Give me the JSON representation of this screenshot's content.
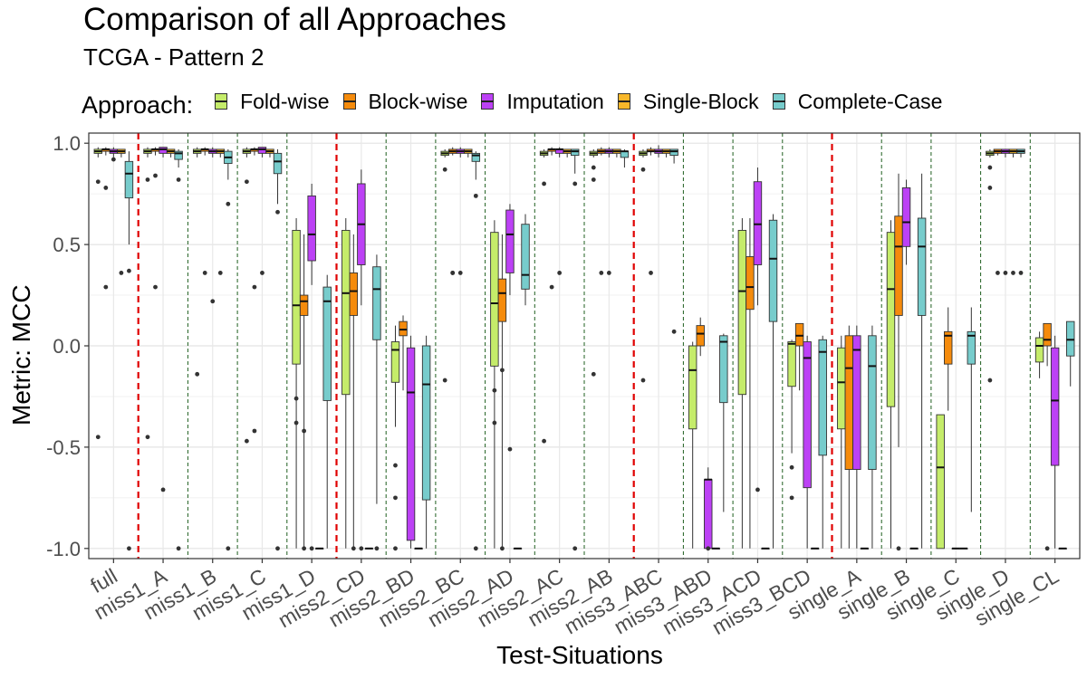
{
  "chart_data": {
    "type": "boxplot",
    "title": "Comparison of all Approaches",
    "subtitle": "TCGA - Pattern 2",
    "xlabel": "Test-Situations",
    "ylabel": "Metric: MCC",
    "ylim": [
      -1.05,
      1.05
    ],
    "yticks": [
      1.0,
      0.5,
      0.0,
      -0.5,
      -1.0
    ],
    "ytick_labels": [
      "1.0",
      "0.5",
      "0.0",
      "-0.5",
      "-1.0"
    ],
    "grid": true,
    "legend": {
      "title": "Approach:",
      "position": "top"
    },
    "categories": [
      "full",
      "miss1_A",
      "miss1_B",
      "miss1_C",
      "miss1_D",
      "miss2_CD",
      "miss2_BD",
      "miss2_BC",
      "miss2_AD",
      "miss2_AC",
      "miss2_AB",
      "miss3_ABC",
      "miss3_ABD",
      "miss3_ACD",
      "miss3_BCD",
      "single_A",
      "single_B",
      "single_C",
      "single_D",
      "single_CL"
    ],
    "red_separators_after": [
      0,
      4,
      10,
      14
    ],
    "series": [
      {
        "name": "Fold-wise",
        "color": "#c5ec6a",
        "boxes": [
          [
            0.93,
            0.95,
            0.96,
            0.97,
            0.98
          ],
          [
            0.93,
            0.95,
            0.96,
            0.97,
            0.98
          ],
          [
            0.93,
            0.95,
            0.96,
            0.97,
            0.98
          ],
          [
            0.93,
            0.95,
            0.96,
            0.97,
            0.98
          ],
          [
            -1.0,
            -0.09,
            0.2,
            0.57,
            0.63
          ],
          [
            -1.0,
            -0.24,
            0.26,
            0.57,
            0.63
          ],
          [
            -0.4,
            -0.18,
            -0.02,
            0.02,
            0.1
          ],
          [
            0.93,
            0.94,
            0.95,
            0.96,
            0.97
          ],
          [
            -1.0,
            -0.1,
            0.21,
            0.56,
            0.62
          ],
          [
            0.93,
            0.94,
            0.95,
            0.96,
            0.97
          ],
          [
            0.93,
            0.94,
            0.95,
            0.96,
            0.97
          ],
          [
            0.93,
            0.94,
            0.95,
            0.96,
            0.97
          ],
          [
            -1.0,
            -0.41,
            -0.12,
            0.0,
            0.02
          ],
          [
            -1.0,
            -0.24,
            0.27,
            0.57,
            0.63
          ],
          [
            -0.53,
            -0.2,
            0.01,
            0.02,
            0.03
          ],
          [
            -1.0,
            -0.41,
            -0.18,
            -0.01,
            0.05
          ],
          [
            -1.0,
            -0.3,
            0.28,
            0.56,
            0.62
          ],
          [
            -1.0,
            -1.0,
            -0.6,
            -0.34,
            -0.34
          ],
          [
            0.93,
            0.94,
            0.95,
            0.96,
            0.97
          ],
          [
            -0.16,
            -0.08,
            0.0,
            0.04,
            0.07
          ]
        ],
        "outliers": [
          [
            0.81,
            -0.45
          ],
          [
            0.82,
            -0.45
          ],
          [
            -0.14
          ],
          [
            0.81,
            -0.47
          ],
          [
            -0.26,
            -0.38
          ],
          [],
          [
            -0.59,
            -0.75,
            -1.0
          ],
          [
            0.87,
            -0.17
          ],
          [
            -0.22,
            -0.38
          ],
          [
            0.8,
            -0.47
          ],
          [
            0.88,
            0.82,
            -0.14
          ],
          [
            0.87,
            -0.17
          ],
          [],
          [],
          [
            -0.6,
            -0.75
          ],
          [],
          [],
          [],
          [
            0.88,
            0.78,
            -0.17
          ],
          []
        ]
      },
      {
        "name": "Block-wise",
        "color": "#f58b0c",
        "boxes": [
          [
            0.94,
            0.96,
            0.97,
            0.97,
            0.98
          ],
          [
            0.94,
            0.96,
            0.97,
            0.97,
            0.98
          ],
          [
            0.94,
            0.96,
            0.97,
            0.97,
            0.98
          ],
          [
            0.94,
            0.96,
            0.97,
            0.97,
            0.98
          ],
          [
            -1.0,
            0.15,
            0.22,
            0.25,
            0.55
          ],
          [
            -1.0,
            0.15,
            0.27,
            0.36,
            0.55
          ],
          [
            -0.22,
            0.05,
            0.08,
            0.12,
            0.15
          ],
          [
            0.94,
            0.95,
            0.96,
            0.97,
            0.98
          ],
          [
            -1.0,
            0.12,
            0.26,
            0.33,
            0.55
          ],
          [
            0.94,
            0.96,
            0.97,
            0.97,
            0.98
          ],
          [
            0.94,
            0.95,
            0.96,
            0.97,
            0.98
          ],
          [
            0.94,
            0.96,
            0.96,
            0.97,
            0.98
          ],
          [
            -0.05,
            0.0,
            0.06,
            0.1,
            0.14
          ],
          [
            -1.0,
            0.18,
            0.29,
            0.44,
            0.63
          ],
          [
            -0.22,
            0.0,
            0.05,
            0.11,
            0.11
          ],
          [
            -1.0,
            -0.61,
            -0.11,
            0.05,
            0.1
          ],
          [
            -0.5,
            0.15,
            0.49,
            0.64,
            0.85
          ],
          [
            -0.32,
            -0.09,
            0.05,
            0.07,
            0.19
          ],
          [
            0.94,
            0.95,
            0.96,
            0.97,
            0.97
          ],
          [
            -0.1,
            0.0,
            0.03,
            0.11,
            0.11
          ]
        ],
        "outliers": [
          [
            0.78,
            0.29
          ],
          [
            0.84,
            0.29
          ],
          [
            0.36
          ],
          [
            0.29,
            -0.42
          ],
          [
            -0.42,
            -1.0
          ],
          [
            -1.0
          ],
          [],
          [
            0.36,
            0.36
          ],
          [
            -0.12,
            -1.0
          ],
          [
            0.29
          ],
          [
            0.36
          ],
          [
            0.36
          ],
          [],
          [],
          [],
          [],
          [
            -1.0
          ],
          [],
          [
            0.36
          ],
          [
            -1.0
          ]
        ]
      },
      {
        "name": "Imputation",
        "color": "#bc41f5",
        "boxes": [
          [
            0.93,
            0.95,
            0.96,
            0.97,
            0.98
          ],
          [
            0.93,
            0.95,
            0.97,
            0.98,
            0.98
          ],
          [
            0.93,
            0.95,
            0.96,
            0.97,
            0.98
          ],
          [
            0.93,
            0.95,
            0.97,
            0.98,
            0.98
          ],
          [
            0.3,
            0.42,
            0.55,
            0.74,
            0.8
          ],
          [
            0.2,
            0.4,
            0.6,
            0.8,
            0.87
          ],
          [
            -1.0,
            -0.96,
            -0.23,
            -0.01,
            0.05
          ],
          [
            0.93,
            0.95,
            0.96,
            0.97,
            0.98
          ],
          [
            0.25,
            0.36,
            0.55,
            0.67,
            0.7
          ],
          [
            0.93,
            0.95,
            0.97,
            0.97,
            0.98
          ],
          [
            0.93,
            0.95,
            0.96,
            0.97,
            0.98
          ],
          [
            0.93,
            0.95,
            0.96,
            0.97,
            0.99
          ],
          [
            -1.0,
            -1.0,
            -0.66,
            -0.66,
            -0.6
          ],
          [
            0.2,
            0.4,
            0.6,
            0.81,
            0.88
          ],
          [
            -1.0,
            -0.7,
            -0.06,
            0.02,
            0.05
          ],
          [
            -1.0,
            -0.61,
            -0.02,
            0.05,
            0.1
          ],
          [
            0.4,
            0.49,
            0.61,
            0.78,
            0.82
          ],
          [
            -1.0,
            -1.0,
            -1.0,
            -1.0,
            -1.0
          ],
          [
            0.93,
            0.95,
            0.96,
            0.97,
            0.97
          ],
          [
            -1.0,
            -0.59,
            -0.27,
            -0.01,
            0.05
          ]
        ],
        "outliers": [
          [
            0.92
          ],
          [
            -0.71
          ],
          [
            0.22
          ],
          [
            0.36
          ],
          [
            -1.0
          ],
          [
            -1.0
          ],
          [],
          [
            0.36
          ],
          [
            -0.51
          ],
          [
            0.36
          ],
          [
            0.36
          ],
          [],
          [
            -1.0
          ],
          [
            -0.71
          ],
          [],
          [],
          [],
          [],
          [
            0.36
          ],
          []
        ]
      },
      {
        "name": "Single-Block",
        "color": "#f8b72a",
        "boxes": [
          [
            0.93,
            0.95,
            0.96,
            0.97,
            0.97
          ],
          [
            0.93,
            0.95,
            0.96,
            0.97,
            0.97
          ],
          [
            0.93,
            0.95,
            0.96,
            0.97,
            0.97
          ],
          [
            0.93,
            0.95,
            0.96,
            0.97,
            0.97
          ],
          [
            -1.0,
            -1.0,
            -1.0,
            -1.0,
            -1.0
          ],
          [
            -1.0,
            -1.0,
            -1.0,
            -1.0,
            -1.0
          ],
          [
            -1.0,
            -1.0,
            -1.0,
            -1.0,
            -1.0
          ],
          [
            0.93,
            0.95,
            0.96,
            0.97,
            0.97
          ],
          [
            -1.0,
            -1.0,
            -1.0,
            -1.0,
            -1.0
          ],
          [
            0.93,
            0.95,
            0.96,
            0.97,
            0.97
          ],
          [
            0.93,
            0.95,
            0.96,
            0.97,
            0.97
          ],
          [
            0.93,
            0.95,
            0.96,
            0.97,
            0.97
          ],
          [
            -1.0,
            -1.0,
            -1.0,
            -1.0,
            -1.0
          ],
          [
            -1.0,
            -1.0,
            -1.0,
            -1.0,
            -1.0
          ],
          [
            -1.0,
            -1.0,
            -1.0,
            -1.0,
            -1.0
          ],
          [
            -1.0,
            -1.0,
            -1.0,
            -1.0,
            -1.0
          ],
          [
            -1.0,
            -1.0,
            -1.0,
            -1.0,
            -1.0
          ],
          [
            -1.0,
            -1.0,
            -1.0,
            -1.0,
            -1.0
          ],
          [
            0.93,
            0.95,
            0.96,
            0.97,
            0.97
          ],
          [
            -1.0,
            -1.0,
            -1.0,
            -1.0,
            -1.0
          ]
        ],
        "outliers": [
          [
            0.36
          ],
          [],
          [
            0.36
          ],
          [],
          [],
          [],
          [],
          [],
          [],
          [],
          [],
          [],
          [],
          [],
          [],
          [],
          [],
          [],
          [
            0.36
          ],
          []
        ]
      },
      {
        "name": "Complete-Case",
        "color": "#77cccc",
        "boxes": [
          [
            0.5,
            0.73,
            0.85,
            0.91,
            0.96
          ],
          [
            0.88,
            0.92,
            0.95,
            0.96,
            0.97
          ],
          [
            0.82,
            0.9,
            0.93,
            0.96,
            0.97
          ],
          [
            0.7,
            0.85,
            0.91,
            0.95,
            0.97
          ],
          [
            -1.0,
            -0.27,
            0.22,
            0.29,
            0.35
          ],
          [
            -0.78,
            0.03,
            0.28,
            0.39,
            0.45
          ],
          [
            -1.0,
            -0.76,
            -0.19,
            0.0,
            0.05
          ],
          [
            0.82,
            0.91,
            0.94,
            0.95,
            0.96
          ],
          [
            0.2,
            0.28,
            0.35,
            0.6,
            0.65
          ],
          [
            0.85,
            0.94,
            0.96,
            0.97,
            0.97
          ],
          [
            0.88,
            0.93,
            0.96,
            0.96,
            0.97
          ],
          [
            0.9,
            0.94,
            0.96,
            0.97,
            0.97
          ],
          [
            -0.82,
            -0.28,
            0.02,
            0.05,
            0.06
          ],
          [
            -1.0,
            0.12,
            0.43,
            0.62,
            0.65
          ],
          [
            -1.0,
            -0.54,
            -0.03,
            0.03,
            0.05
          ],
          [
            -1.0,
            -0.61,
            -0.1,
            0.05,
            0.1
          ],
          [
            -1.0,
            0.15,
            0.49,
            0.63,
            0.85
          ],
          [
            -0.82,
            -0.09,
            0.05,
            0.07,
            0.19
          ],
          [
            0.93,
            0.95,
            0.96,
            0.97,
            0.97
          ],
          [
            -0.2,
            -0.05,
            0.03,
            0.12,
            0.12
          ]
        ],
        "outliers": [
          [
            0.37,
            -1.0
          ],
          [
            0.82,
            -1.0
          ],
          [
            0.7,
            -1.0
          ],
          [
            0.66,
            -1.0
          ],
          [],
          [
            -1.0
          ],
          [],
          [
            0.74,
            -1.0
          ],
          [],
          [
            0.8,
            -1.0
          ],
          [],
          [
            0.07
          ],
          [],
          [],
          [],
          [],
          [],
          [],
          [
            0.36
          ],
          []
        ]
      }
    ]
  }
}
